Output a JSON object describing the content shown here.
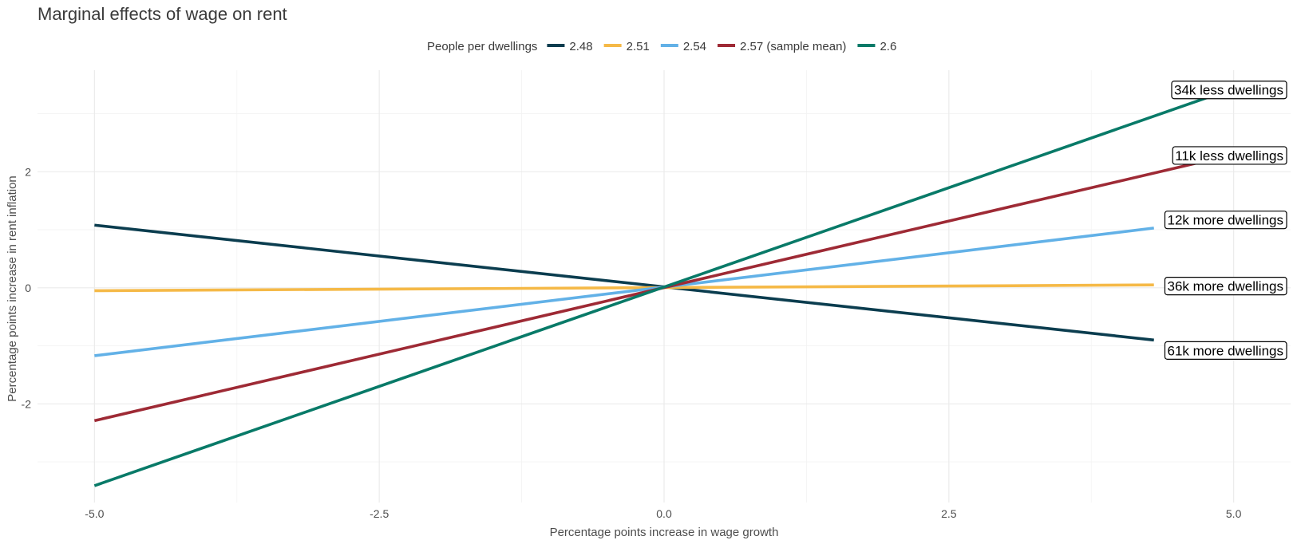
{
  "chart_data": {
    "type": "line",
    "title": "Marginal effects of wage on rent",
    "xlabel": "Percentage points increase in wage growth",
    "ylabel": "Percentage points increase in rent inflation",
    "xlim": [
      -5.5,
      5.5
    ],
    "ylim": [
      -3.7,
      3.75
    ],
    "x_ticks": [
      -5.0,
      -2.5,
      0.0,
      2.5,
      5.0
    ],
    "x_tick_labels": [
      "-5.0",
      "-2.5",
      "0.0",
      "2.5",
      "5.0"
    ],
    "y_ticks": [
      -2,
      0,
      2
    ],
    "y_tick_labels": [
      "-2",
      "0",
      "2"
    ],
    "grid": true,
    "legend": {
      "title": "People per dwellings",
      "position": "top"
    },
    "series": [
      {
        "name": "2.48",
        "color": "#0b3d4f",
        "x": [
          -5.0,
          4.3
        ],
        "y": [
          1.08,
          -0.9
        ]
      },
      {
        "name": "2.51",
        "color": "#f5b947",
        "x": [
          -5.0,
          4.3
        ],
        "y": [
          -0.05,
          0.05
        ]
      },
      {
        "name": "2.54",
        "color": "#62b1e7",
        "x": [
          -5.0,
          4.3
        ],
        "y": [
          -1.17,
          1.03
        ]
      },
      {
        "name": "2.57 (sample mean)",
        "color": "#9e2a35",
        "x": [
          -5.0,
          4.7
        ],
        "y": [
          -2.29,
          2.16
        ]
      },
      {
        "name": "2.6",
        "color": "#087a68",
        "x": [
          -5.0,
          4.8
        ],
        "y": [
          -3.41,
          3.3
        ]
      }
    ],
    "annotations": [
      {
        "text": "34k less dwellings",
        "y": 3.41
      },
      {
        "text": "11k less dwellings",
        "y": 2.28
      },
      {
        "text": "12k more dwellings",
        "y": 1.17
      },
      {
        "text": "36k more dwellings",
        "y": 0.03
      },
      {
        "text": "61k more dwellings",
        "y": -1.08
      }
    ]
  }
}
